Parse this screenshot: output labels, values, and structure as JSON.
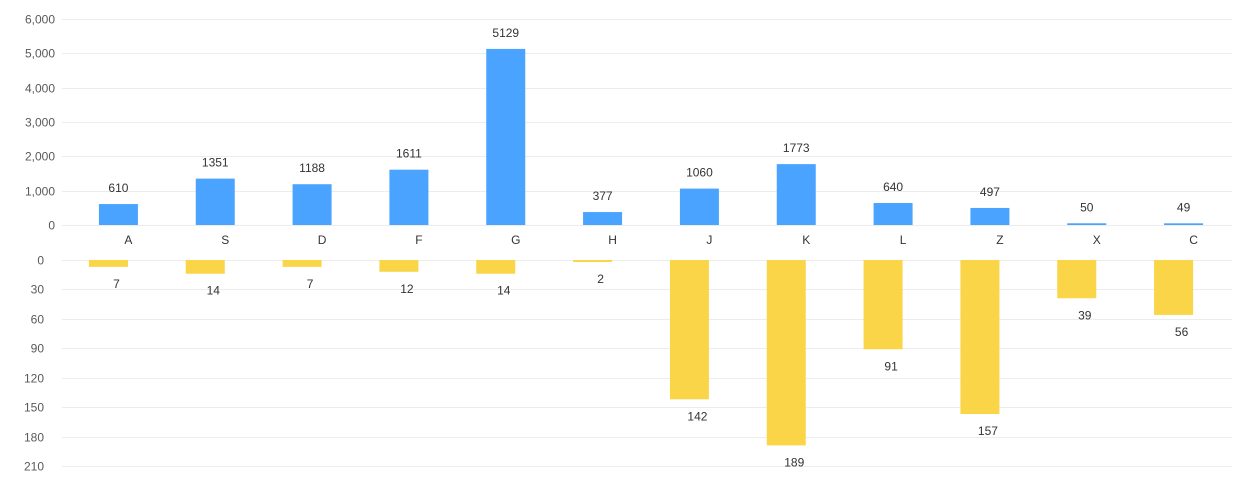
{
  "chart_data": [
    {
      "type": "bar",
      "categories": [
        "A",
        "S",
        "D",
        "F",
        "G",
        "H",
        "J",
        "K",
        "L",
        "Z",
        "X",
        "C"
      ],
      "values": [
        610,
        1351,
        1188,
        1611,
        5129,
        377,
        1060,
        1773,
        640,
        497,
        50,
        49
      ],
      "ylim": [
        0,
        6000
      ],
      "yticks": [
        "0",
        "1,000",
        "2,000",
        "3,000",
        "4,000",
        "5,000",
        "6,000"
      ],
      "ytick_values": [
        0,
        1000,
        2000,
        3000,
        4000,
        5000,
        6000
      ],
      "color": "#4aa3ff",
      "data_labels": true,
      "grid": true
    },
    {
      "type": "bar",
      "categories": [
        "A",
        "S",
        "D",
        "F",
        "G",
        "H",
        "J",
        "K",
        "L",
        "Z",
        "X",
        "C"
      ],
      "values": [
        7,
        14,
        7,
        12,
        14,
        2,
        142,
        189,
        91,
        157,
        39,
        56
      ],
      "ylim": [
        0,
        210
      ],
      "y_inverted": true,
      "yticks": [
        "0",
        "30",
        "60",
        "90",
        "120",
        "150",
        "180",
        "210"
      ],
      "ytick_values": [
        0,
        30,
        60,
        90,
        120,
        150,
        180,
        210
      ],
      "color": "#f9d547",
      "data_labels": true,
      "grid": true
    }
  ]
}
